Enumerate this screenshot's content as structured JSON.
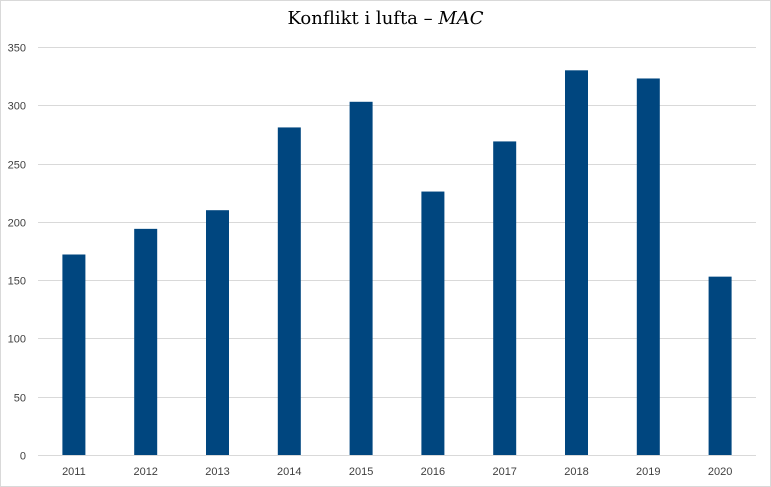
{
  "chart_data": {
    "type": "bar",
    "title_main": "Konflikt i lufta – ",
    "title_emphasis": "MAC",
    "xlabel": "",
    "ylabel": "",
    "categories": [
      "2011",
      "2012",
      "2013",
      "2014",
      "2015",
      "2016",
      "2017",
      "2018",
      "2019",
      "2020"
    ],
    "values": [
      172,
      194,
      210,
      281,
      303,
      226,
      269,
      330,
      323,
      153
    ],
    "ylim": [
      0,
      350
    ],
    "yticks": [
      0,
      50,
      100,
      150,
      200,
      250,
      300,
      350
    ],
    "grid": true,
    "legend": "none",
    "bar_color": "#00467f",
    "grid_color": "#d9d9d9"
  }
}
